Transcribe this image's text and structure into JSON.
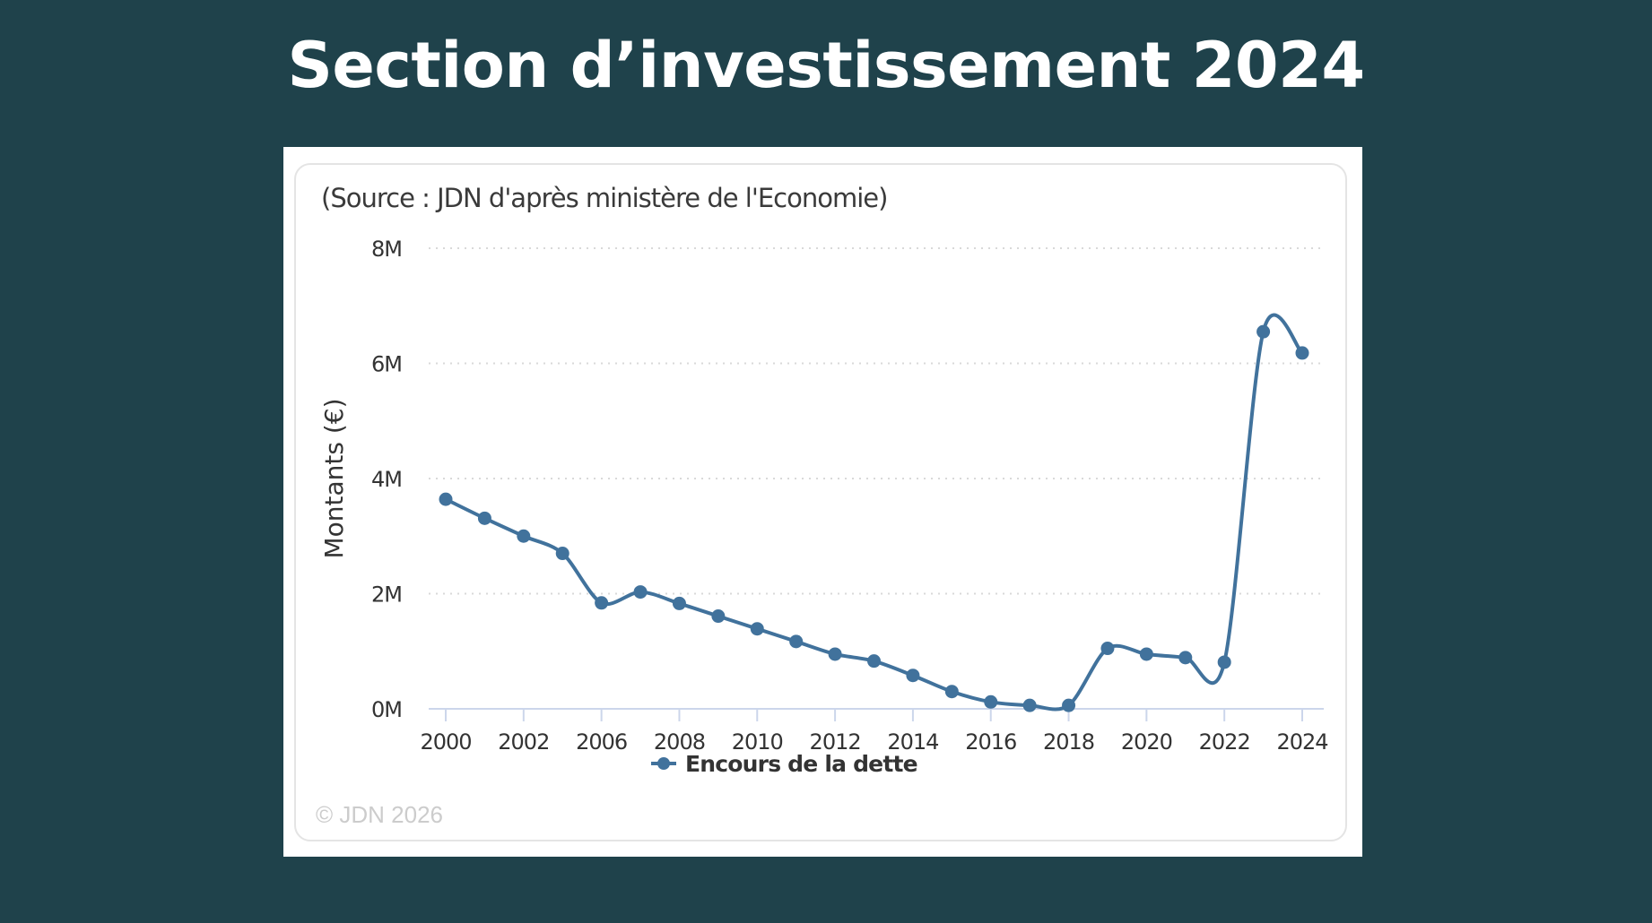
{
  "slide": {
    "title": "Section d’investissement 2024",
    "background_color": "#1f424b"
  },
  "card": {
    "source_note": "(Source : JDN d'après ministère de l'Economie)",
    "copyright": "© JDN 2026"
  },
  "chart_data": {
    "type": "line",
    "title": "",
    "subtitle": "(Source : JDN d'après ministère de l'Economie)",
    "xlabel": "",
    "ylabel": "Montants (€)",
    "ylim": [
      0,
      8000000
    ],
    "yticks": [
      0,
      2000000,
      4000000,
      6000000,
      8000000
    ],
    "ytick_labels": [
      "0M",
      "2M",
      "4M",
      "6M",
      "8M"
    ],
    "xtick_labels": [
      "2000",
      "2002",
      "2006",
      "2008",
      "2010",
      "2012",
      "2014",
      "2016",
      "2018",
      "2020",
      "2022",
      "2024"
    ],
    "grid": "horizontal-dotted",
    "legend": {
      "position": "bottom-center",
      "entries": [
        "Encours de la dette"
      ]
    },
    "color": "#41729c",
    "x": [
      "2000",
      "2001",
      "2002",
      "2003",
      "2006",
      "2007",
      "2008",
      "2009",
      "2010",
      "2011",
      "2012",
      "2013",
      "2014",
      "2015",
      "2016",
      "2017",
      "2018",
      "2019",
      "2020",
      "2021",
      "2022",
      "2023",
      "2024"
    ],
    "series": [
      {
        "name": "Encours de la dette",
        "values": [
          3640000,
          3310000,
          3000000,
          2700000,
          1840000,
          2030000,
          1830000,
          1610000,
          1390000,
          1170000,
          950000,
          830000,
          580000,
          300000,
          120000,
          60000,
          60000,
          1050000,
          950000,
          890000,
          810000,
          6550000,
          6180000
        ]
      }
    ],
    "footer": "© JDN 2026"
  }
}
